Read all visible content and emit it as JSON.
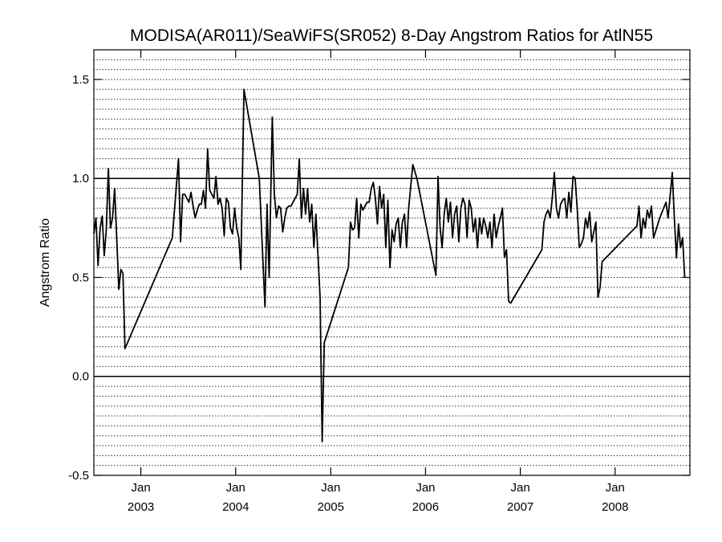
{
  "chart_data": {
    "type": "line",
    "title": "MODISA(AR011)/SeaWiFS(SR052) 8-Day Angstrom Ratios for AtlN55",
    "xlabel": "",
    "ylabel": "Angstrom Ratio",
    "xlim": [
      "2002-07-04",
      "2008-10-15"
    ],
    "ylim": [
      -0.5,
      1.65
    ],
    "grid": true,
    "reference_lines": [
      1.0,
      0.0
    ],
    "y_ticks": [
      {
        "value": -0.5,
        "label": "-0.5"
      },
      {
        "value": 0.0,
        "label": "0.0"
      },
      {
        "value": 0.5,
        "label": "0.5"
      },
      {
        "value": 1.0,
        "label": "1.0"
      },
      {
        "value": 1.5,
        "label": "1.5"
      }
    ],
    "x_ticks": [
      {
        "date": "2003-01-01",
        "month": "Jan",
        "year": "2003"
      },
      {
        "date": "2004-01-01",
        "month": "Jan",
        "year": "2004"
      },
      {
        "date": "2005-01-01",
        "month": "Jan",
        "year": "2005"
      },
      {
        "date": "2006-01-01",
        "month": "Jan",
        "year": "2006"
      },
      {
        "date": "2007-01-01",
        "month": "Jan",
        "year": "2007"
      },
      {
        "date": "2008-01-01",
        "month": "Jan",
        "year": "2008"
      }
    ],
    "series": [
      {
        "color": "#000000",
        "points": [
          [
            "2002-07-04",
            0.72
          ],
          [
            "2002-07-12",
            0.8
          ],
          [
            "2002-07-20",
            0.56
          ],
          [
            "2002-07-28",
            0.75
          ],
          [
            "2002-08-05",
            0.81
          ],
          [
            "2002-08-13",
            0.61
          ],
          [
            "2002-08-21",
            0.74
          ],
          [
            "2002-08-29",
            1.05
          ],
          [
            "2002-09-06",
            0.75
          ],
          [
            "2002-09-14",
            0.8
          ],
          [
            "2002-09-22",
            0.95
          ],
          [
            "2002-09-30",
            0.7
          ],
          [
            "2002-10-08",
            0.44
          ],
          [
            "2002-10-16",
            0.54
          ],
          [
            "2002-10-24",
            0.52
          ],
          [
            "2002-11-01",
            0.14
          ],
          [
            "2003-05-02",
            0.7
          ],
          [
            "2003-05-26",
            1.1
          ],
          [
            "2003-06-03",
            0.68
          ],
          [
            "2003-06-11",
            0.92
          ],
          [
            "2003-06-19",
            0.92
          ],
          [
            "2003-06-27",
            0.9
          ],
          [
            "2003-07-05",
            0.88
          ],
          [
            "2003-07-13",
            0.93
          ],
          [
            "2003-07-21",
            0.86
          ],
          [
            "2003-07-29",
            0.8
          ],
          [
            "2003-08-06",
            0.84
          ],
          [
            "2003-08-14",
            0.87
          ],
          [
            "2003-08-22",
            0.87
          ],
          [
            "2003-08-30",
            0.94
          ],
          [
            "2003-09-07",
            0.85
          ],
          [
            "2003-09-15",
            1.15
          ],
          [
            "2003-09-23",
            0.94
          ],
          [
            "2003-10-01",
            0.92
          ],
          [
            "2003-10-09",
            0.9
          ],
          [
            "2003-10-17",
            1.01
          ],
          [
            "2003-10-25",
            0.87
          ],
          [
            "2003-11-02",
            0.9
          ],
          [
            "2003-11-10",
            0.85
          ],
          [
            "2003-11-18",
            0.71
          ],
          [
            "2003-11-26",
            0.9
          ],
          [
            "2003-12-04",
            0.88
          ],
          [
            "2003-12-12",
            0.75
          ],
          [
            "2003-12-20",
            0.72
          ],
          [
            "2003-12-28",
            0.85
          ],
          [
            "2004-01-05",
            0.75
          ],
          [
            "2004-01-13",
            0.7
          ],
          [
            "2004-01-21",
            0.54
          ],
          [
            "2004-02-02",
            1.45
          ],
          [
            "2004-04-01",
            1.0
          ],
          [
            "2004-04-23",
            0.35
          ],
          [
            "2004-05-01",
            0.87
          ],
          [
            "2004-05-09",
            0.5
          ],
          [
            "2004-05-21",
            1.31
          ],
          [
            "2004-05-29",
            0.92
          ],
          [
            "2004-06-06",
            0.8
          ],
          [
            "2004-06-14",
            0.86
          ],
          [
            "2004-06-22",
            0.85
          ],
          [
            "2004-06-30",
            0.73
          ],
          [
            "2004-07-08",
            0.8
          ],
          [
            "2004-07-16",
            0.85
          ],
          [
            "2004-07-24",
            0.86
          ],
          [
            "2004-08-01",
            0.86
          ],
          [
            "2004-08-09",
            0.88
          ],
          [
            "2004-08-17",
            0.9
          ],
          [
            "2004-08-25",
            0.92
          ],
          [
            "2004-09-02",
            1.1
          ],
          [
            "2004-09-10",
            0.8
          ],
          [
            "2004-09-18",
            0.95
          ],
          [
            "2004-09-26",
            0.82
          ],
          [
            "2004-10-04",
            0.95
          ],
          [
            "2004-10-12",
            0.78
          ],
          [
            "2004-10-20",
            0.87
          ],
          [
            "2004-10-28",
            0.65
          ],
          [
            "2004-11-05",
            0.82
          ],
          [
            "2004-11-21",
            0.4
          ],
          [
            "2004-11-29",
            -0.33
          ],
          [
            "2004-12-07",
            0.17
          ],
          [
            "2005-03-10",
            0.55
          ],
          [
            "2005-03-18",
            0.78
          ],
          [
            "2005-03-26",
            0.74
          ],
          [
            "2005-04-03",
            0.75
          ],
          [
            "2005-04-11",
            0.9
          ],
          [
            "2005-04-19",
            0.7
          ],
          [
            "2005-04-27",
            0.87
          ],
          [
            "2005-05-05",
            0.84
          ],
          [
            "2005-05-13",
            0.86
          ],
          [
            "2005-05-21",
            0.88
          ],
          [
            "2005-05-29",
            0.88
          ],
          [
            "2005-06-06",
            0.95
          ],
          [
            "2005-06-14",
            0.98
          ],
          [
            "2005-06-22",
            0.9
          ],
          [
            "2005-06-30",
            0.77
          ],
          [
            "2005-07-08",
            0.96
          ],
          [
            "2005-07-16",
            0.85
          ],
          [
            "2005-07-24",
            0.92
          ],
          [
            "2005-08-01",
            0.65
          ],
          [
            "2005-08-09",
            0.89
          ],
          [
            "2005-08-17",
            0.55
          ],
          [
            "2005-08-25",
            0.74
          ],
          [
            "2005-09-02",
            0.68
          ],
          [
            "2005-09-10",
            0.77
          ],
          [
            "2005-09-18",
            0.8
          ],
          [
            "2005-09-26",
            0.65
          ],
          [
            "2005-10-04",
            0.78
          ],
          [
            "2005-10-12",
            0.82
          ],
          [
            "2005-10-20",
            0.65
          ],
          [
            "2005-10-28",
            0.85
          ],
          [
            "2005-11-13",
            1.07
          ],
          [
            "2005-11-29",
            1.0
          ],
          [
            "2006-02-10",
            0.51
          ],
          [
            "2006-02-18",
            1.01
          ],
          [
            "2006-02-26",
            0.75
          ],
          [
            "2006-03-06",
            0.65
          ],
          [
            "2006-03-14",
            0.82
          ],
          [
            "2006-03-22",
            0.9
          ],
          [
            "2006-03-30",
            0.78
          ],
          [
            "2006-04-07",
            0.88
          ],
          [
            "2006-04-15",
            0.7
          ],
          [
            "2006-04-23",
            0.82
          ],
          [
            "2006-05-01",
            0.86
          ],
          [
            "2006-05-09",
            0.68
          ],
          [
            "2006-05-17",
            0.85
          ],
          [
            "2006-05-25",
            0.9
          ],
          [
            "2006-06-02",
            0.87
          ],
          [
            "2006-06-10",
            0.7
          ],
          [
            "2006-06-18",
            0.89
          ],
          [
            "2006-06-26",
            0.85
          ],
          [
            "2006-07-04",
            0.73
          ],
          [
            "2006-07-12",
            0.8
          ],
          [
            "2006-07-20",
            0.65
          ],
          [
            "2006-07-28",
            0.8
          ],
          [
            "2006-08-05",
            0.72
          ],
          [
            "2006-08-13",
            0.8
          ],
          [
            "2006-08-21",
            0.76
          ],
          [
            "2006-08-29",
            0.7
          ],
          [
            "2006-09-06",
            0.78
          ],
          [
            "2006-09-14",
            0.65
          ],
          [
            "2006-09-22",
            0.82
          ],
          [
            "2006-09-30",
            0.7
          ],
          [
            "2006-10-08",
            0.76
          ],
          [
            "2006-10-16",
            0.8
          ],
          [
            "2006-10-24",
            0.85
          ],
          [
            "2006-11-01",
            0.6
          ],
          [
            "2006-11-09",
            0.64
          ],
          [
            "2006-11-17",
            0.38
          ],
          [
            "2006-11-25",
            0.37
          ],
          [
            "2007-03-25",
            0.64
          ],
          [
            "2007-04-02",
            0.78
          ],
          [
            "2007-04-10",
            0.82
          ],
          [
            "2007-04-18",
            0.84
          ],
          [
            "2007-04-26",
            0.8
          ],
          [
            "2007-05-04",
            0.9
          ],
          [
            "2007-05-12",
            1.03
          ],
          [
            "2007-05-20",
            0.85
          ],
          [
            "2007-05-28",
            0.8
          ],
          [
            "2007-06-05",
            0.87
          ],
          [
            "2007-06-13",
            0.89
          ],
          [
            "2007-06-21",
            0.9
          ],
          [
            "2007-06-29",
            0.8
          ],
          [
            "2007-07-07",
            0.93
          ],
          [
            "2007-07-15",
            0.83
          ],
          [
            "2007-07-23",
            1.01
          ],
          [
            "2007-07-31",
            1.0
          ],
          [
            "2007-08-08",
            0.85
          ],
          [
            "2007-08-16",
            0.65
          ],
          [
            "2007-08-24",
            0.67
          ],
          [
            "2007-09-01",
            0.7
          ],
          [
            "2007-09-09",
            0.8
          ],
          [
            "2007-09-17",
            0.75
          ],
          [
            "2007-09-25",
            0.83
          ],
          [
            "2007-10-03",
            0.68
          ],
          [
            "2007-10-11",
            0.73
          ],
          [
            "2007-10-19",
            0.78
          ],
          [
            "2007-10-27",
            0.4
          ],
          [
            "2007-11-04",
            0.45
          ],
          [
            "2007-11-12",
            0.58
          ],
          [
            "2008-03-25",
            0.76
          ],
          [
            "2008-04-02",
            0.86
          ],
          [
            "2008-04-10",
            0.7
          ],
          [
            "2008-04-18",
            0.8
          ],
          [
            "2008-04-26",
            0.75
          ],
          [
            "2008-05-04",
            0.84
          ],
          [
            "2008-05-12",
            0.8
          ],
          [
            "2008-05-20",
            0.86
          ],
          [
            "2008-05-28",
            0.7
          ],
          [
            "2008-06-21",
            0.8
          ],
          [
            "2008-07-15",
            0.88
          ],
          [
            "2008-07-23",
            0.8
          ],
          [
            "2008-08-08",
            1.03
          ],
          [
            "2008-08-16",
            0.8
          ],
          [
            "2008-08-24",
            0.6
          ],
          [
            "2008-09-01",
            0.77
          ],
          [
            "2008-09-09",
            0.65
          ],
          [
            "2008-09-17",
            0.7
          ],
          [
            "2008-09-25",
            0.5
          ]
        ]
      }
    ]
  }
}
